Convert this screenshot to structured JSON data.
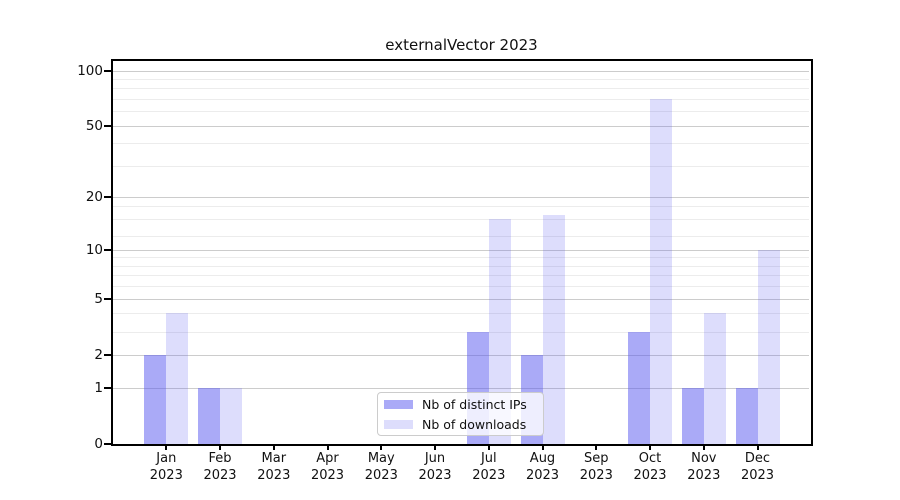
{
  "title": "externalVector 2023",
  "legend": {
    "entries": [
      {
        "label": "Nb of distinct IPs",
        "color": "rgba(85,85,240,0.5)"
      },
      {
        "label": "Nb of downloads",
        "color": "rgba(85,85,240,0.2)"
      }
    ]
  },
  "chart_data": {
    "type": "bar",
    "title": "externalVector 2023",
    "categories": [
      "Jan 2023",
      "Feb 2023",
      "Mar 2023",
      "Apr 2023",
      "May 2023",
      "Jun 2023",
      "Jul 2023",
      "Aug 2023",
      "Sep 2023",
      "Oct 2023",
      "Nov 2023",
      "Dec 2023"
    ],
    "series": [
      {
        "name": "Nb of distinct IPs",
        "color": "rgba(85,85,240,0.5)",
        "values": [
          2,
          1,
          0,
          0,
          0,
          0,
          3,
          2,
          0,
          3,
          1,
          1
        ]
      },
      {
        "name": "Nb of downloads",
        "color": "rgba(85,85,240,0.2)",
        "values": [
          4,
          1,
          0,
          0,
          0,
          0,
          15,
          16,
          0,
          70,
          4,
          10
        ]
      }
    ],
    "xlabel": "",
    "ylabel": "",
    "yscale": "log1p",
    "ylim": [
      0,
      113
    ],
    "ytick_labels": [
      "0",
      "1",
      "2",
      "5",
      "10",
      "20",
      "50",
      "100"
    ],
    "minor_gridline_values": [
      3,
      4,
      6,
      7,
      8,
      9,
      12,
      15,
      18,
      30,
      40,
      60,
      70,
      80,
      90
    ],
    "grid": true,
    "legend_position": "lower center"
  }
}
